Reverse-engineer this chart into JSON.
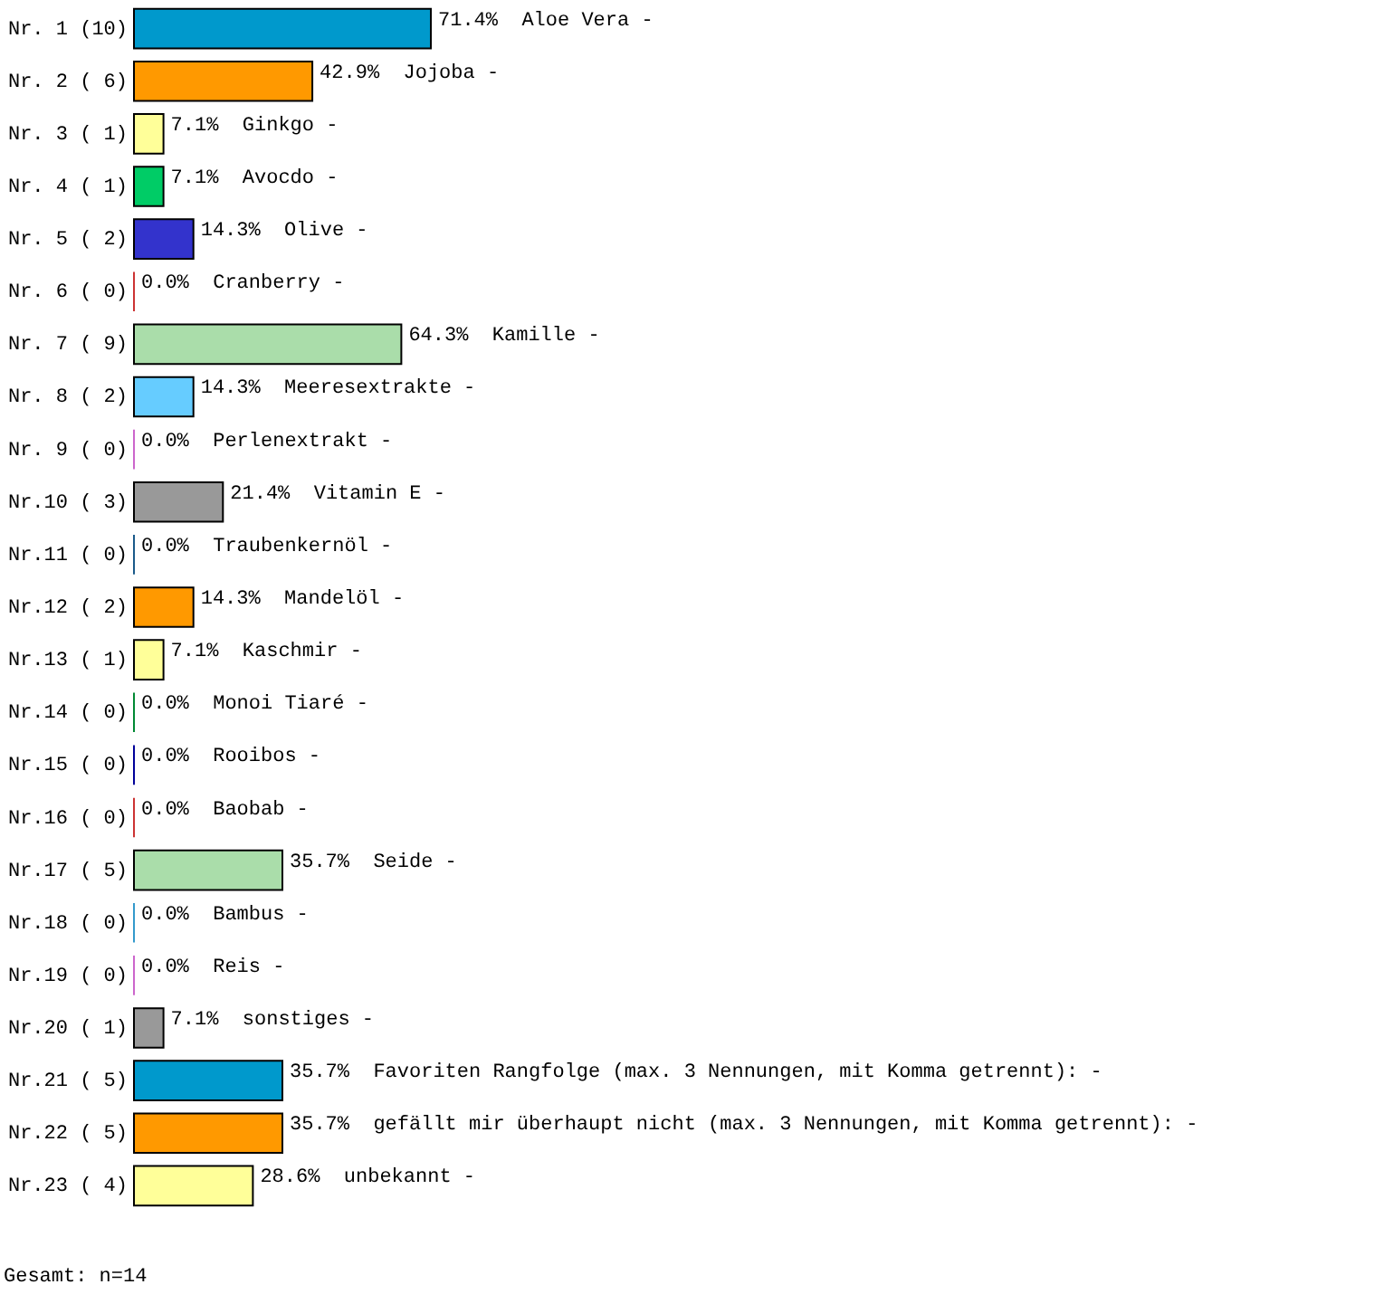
{
  "chart_data": {
    "type": "bar",
    "orientation": "horizontal",
    "categories": [
      "Nr. 1 (10)",
      "Nr. 2 ( 6)",
      "Nr. 3 ( 1)",
      "Nr. 4 ( 1)",
      "Nr. 5 ( 2)",
      "Nr. 6 ( 0)",
      "Nr. 7 ( 9)",
      "Nr. 8 ( 2)",
      "Nr. 9 ( 0)",
      "Nr.10 ( 3)",
      "Nr.11 ( 0)",
      "Nr.12 ( 2)",
      "Nr.13 ( 1)",
      "Nr.14 ( 0)",
      "Nr.15 ( 0)",
      "Nr.16 ( 0)",
      "Nr.17 ( 5)",
      "Nr.18 ( 0)",
      "Nr.19 ( 0)",
      "Nr.20 ( 1)",
      "Nr.21 ( 5)",
      "Nr.22 ( 5)",
      "Nr.23 ( 4)"
    ],
    "values": [
      71.4,
      42.9,
      7.1,
      7.1,
      14.3,
      0.0,
      64.3,
      14.3,
      0.0,
      21.4,
      0.0,
      14.3,
      7.1,
      0.0,
      0.0,
      0.0,
      35.7,
      0.0,
      0.0,
      7.1,
      35.7,
      35.7,
      28.6
    ],
    "value_labels": [
      "71.4%",
      "42.9%",
      "7.1%",
      "7.1%",
      "14.3%",
      "0.0%",
      "64.3%",
      "14.3%",
      "0.0%",
      "21.4%",
      "0.0%",
      "14.3%",
      "7.1%",
      "0.0%",
      "0.0%",
      "0.0%",
      "35.7%",
      "0.0%",
      "0.0%",
      "7.1%",
      "35.7%",
      "35.7%",
      "28.6%"
    ],
    "colors": [
      "#0099cc",
      "#ff9900",
      "#ffff99",
      "#00cc66",
      "#3333cc",
      "#cc3333",
      "#aaddaa",
      "#66ccff",
      "#cc66cc",
      "#999999",
      "#1a5a8a",
      "#ff9900",
      "#ffff99",
      "#008833",
      "#000099",
      "#cc3333",
      "#aaddaa",
      "#3399cc",
      "#cc66cc",
      "#999999",
      "#0099cc",
      "#ff9900",
      "#ffff99"
    ],
    "annotations": [
      "Aloe Vera -",
      "Jojoba -",
      "Ginkgo -",
      "Avocdo -",
      "Olive -",
      "Cranberry -",
      "Kamille -",
      "Meeresextrakte -",
      "Perlenextrakt -",
      "Vitamin E -",
      "Traubenkernöl -",
      "Mandelöl -",
      "Kaschmir -",
      "Monoi Tiaré -",
      "Rooibos -",
      "Baobab -",
      "Seide -",
      "Bambus -",
      "Reis -",
      "sonstiges -",
      "Favoriten Rangfolge (max. 3 Nennungen, mit Komma getrennt): -",
      "gefällt mir überhaupt nicht (max. 3 Nennungen, mit Komma getrennt): -",
      "unbekannt -",
      "Gesamt: n=14"
    ]
  }
}
